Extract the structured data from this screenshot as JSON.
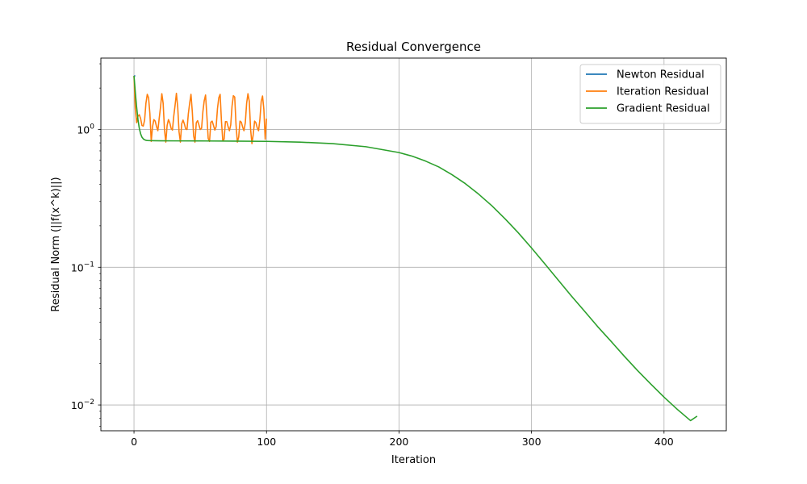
{
  "chart_data": {
    "type": "line",
    "title": "Residual Convergence",
    "xlabel": "Iteration",
    "ylabel": "Residual Norm (||f(x^k)||)",
    "yscale": "log",
    "xlim": [
      -25,
      447
    ],
    "ylim": [
      0.0065,
      3.3
    ],
    "xticks": [
      0,
      100,
      200,
      300,
      400
    ],
    "xtick_labels": [
      "0",
      "100",
      "200",
      "300",
      "400"
    ],
    "yticks": [
      0.01,
      0.1,
      1
    ],
    "ytick_labels": [
      {
        "base": "10",
        "exp": "−2"
      },
      {
        "base": "10",
        "exp": "−1"
      },
      {
        "base": "10",
        "exp": "0"
      }
    ],
    "grid": true,
    "legend_position": "top-right",
    "series": [
      {
        "name": "Newton Residual",
        "color": "#1f77b4",
        "x": [
          0,
          1
        ],
        "y": [
          2.45,
          2.45
        ]
      },
      {
        "name": "Iteration Residual",
        "color": "#ff7f0e",
        "x": [
          0,
          1,
          2,
          3,
          4,
          5,
          6,
          7,
          8,
          9,
          10,
          11,
          12,
          13,
          14,
          15,
          16,
          17,
          18,
          19,
          20,
          21,
          22,
          23,
          24,
          25,
          26,
          27,
          28,
          29,
          30,
          31,
          32,
          33,
          34,
          35,
          36,
          37,
          38,
          39,
          40,
          41,
          42,
          43,
          44,
          45,
          46,
          47,
          48,
          49,
          50,
          51,
          52,
          53,
          54,
          55,
          56,
          57,
          58,
          59,
          60,
          61,
          62,
          63,
          64,
          65,
          66,
          67,
          68,
          69,
          70,
          71,
          72,
          73,
          74,
          75,
          76,
          77,
          78,
          79,
          80,
          81,
          82,
          83,
          84,
          85,
          86,
          87,
          88,
          89,
          90,
          91,
          92,
          93,
          94,
          95,
          96,
          97,
          98,
          99,
          100
        ],
        "y": [
          2.45,
          1.4,
          1.12,
          1.25,
          1.28,
          1.2,
          1.07,
          1.06,
          1.17,
          1.55,
          1.8,
          1.7,
          1.3,
          0.82,
          1.05,
          1.18,
          1.15,
          1.05,
          0.98,
          1.2,
          1.45,
          1.82,
          1.55,
          1.0,
          0.81,
          1.07,
          1.18,
          1.12,
          1.02,
          0.99,
          1.25,
          1.5,
          1.83,
          1.45,
          0.96,
          0.81,
          1.1,
          1.17,
          1.1,
          1.01,
          1.0,
          1.3,
          1.55,
          1.8,
          1.35,
          0.9,
          0.81,
          1.12,
          1.16,
          1.08,
          1.0,
          1.02,
          1.35,
          1.62,
          1.78,
          1.25,
          0.86,
          0.82,
          1.13,
          1.15,
          1.07,
          0.99,
          1.05,
          1.42,
          1.7,
          1.8,
          1.15,
          0.83,
          0.85,
          1.14,
          1.14,
          1.05,
          0.98,
          1.08,
          1.48,
          1.76,
          1.72,
          1.08,
          0.81,
          0.88,
          1.15,
          1.13,
          1.04,
          0.98,
          1.12,
          1.55,
          1.82,
          1.6,
          1.0,
          0.79,
          0.92,
          1.15,
          1.12,
          1.03,
          0.98,
          1.18,
          1.6,
          1.75,
          1.4,
          0.85,
          1.2
        ]
      },
      {
        "name": "Gradient Residual",
        "color": "#2ca02c",
        "x": [
          0,
          1,
          2,
          3,
          4,
          5,
          6,
          7,
          8,
          9,
          10,
          12,
          15,
          20,
          30,
          50,
          75,
          100,
          125,
          150,
          175,
          200,
          210,
          220,
          230,
          240,
          250,
          260,
          270,
          280,
          290,
          300,
          310,
          320,
          330,
          340,
          350,
          360,
          370,
          380,
          390,
          400,
          410,
          420,
          425
        ],
        "y": [
          2.45,
          1.85,
          1.45,
          1.18,
          1.02,
          0.93,
          0.88,
          0.855,
          0.842,
          0.835,
          0.832,
          0.83,
          0.829,
          0.828,
          0.827,
          0.826,
          0.824,
          0.82,
          0.81,
          0.79,
          0.75,
          0.68,
          0.64,
          0.59,
          0.535,
          0.47,
          0.405,
          0.34,
          0.28,
          0.225,
          0.178,
          0.138,
          0.106,
          0.081,
          0.062,
          0.048,
          0.037,
          0.029,
          0.0226,
          0.0178,
          0.0142,
          0.0114,
          0.0093,
          0.0077,
          0.0083
        ]
      }
    ]
  }
}
